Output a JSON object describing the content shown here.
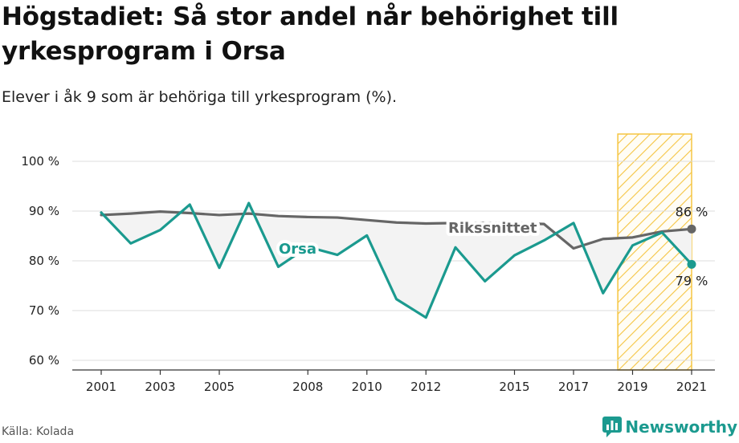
{
  "header": {
    "title": "Högstadiet: Så stor andel når behörighet till yrkesprogram i Orsa",
    "subtitle": "Elever i åk 9 som är behöriga till yrkesprogram (%)."
  },
  "footer": {
    "source": "Källa: Kolada",
    "brand": "Newsworthy"
  },
  "colors": {
    "orsa": "#1b9a8f",
    "riket": "#666666",
    "highlight": "#f5c542",
    "fill": "#f3f3f3",
    "grid": "#dddddd"
  },
  "chart_data": {
    "type": "line",
    "xlim": [
      2001,
      2021
    ],
    "ylim": [
      60,
      100
    ],
    "ytick_values": [
      60,
      70,
      80,
      90,
      100
    ],
    "ytick_labels": [
      "60 %",
      "70 %",
      "80 %",
      "90 %",
      "100 %"
    ],
    "xtick_values": [
      2001,
      2003,
      2005,
      2008,
      2010,
      2012,
      2015,
      2017,
      2019,
      2021
    ],
    "xtick_labels": [
      "2001",
      "2003",
      "2005",
      "2008",
      "2010",
      "2012",
      "2015",
      "2017",
      "2019",
      "2021"
    ],
    "highlight_range": [
      2018.5,
      2021
    ],
    "series": [
      {
        "name": "Rikssnittet",
        "key": "riket",
        "x": [
          2001,
          2002,
          2003,
          2004,
          2005,
          2006,
          2007,
          2008,
          2009,
          2010,
          2011,
          2012,
          2013,
          2014,
          2015,
          2016,
          2017,
          2018,
          2019,
          2020,
          2021
        ],
        "y": [
          89.2,
          89.5,
          89.9,
          89.6,
          89.2,
          89.5,
          89.0,
          88.8,
          88.7,
          88.2,
          87.7,
          87.5,
          87.6,
          87.6,
          87.6,
          87.4,
          82.5,
          84.4,
          84.7,
          85.9,
          86.4
        ],
        "end_label": "86 %"
      },
      {
        "name": "Orsa",
        "key": "orsa",
        "x": [
          2001,
          2002,
          2003,
          2004,
          2005,
          2006,
          2007,
          2008,
          2009,
          2010,
          2011,
          2012,
          2013,
          2014,
          2015,
          2016,
          2017,
          2018,
          2019,
          2020,
          2021
        ],
        "y": [
          89.7,
          83.5,
          86.2,
          91.3,
          78.6,
          91.6,
          78.8,
          82.8,
          81.2,
          85.1,
          72.3,
          68.6,
          82.7,
          75.9,
          81.1,
          84.1,
          87.6,
          73.5,
          83.1,
          85.7,
          79.3
        ],
        "end_label": "79 %"
      }
    ]
  }
}
